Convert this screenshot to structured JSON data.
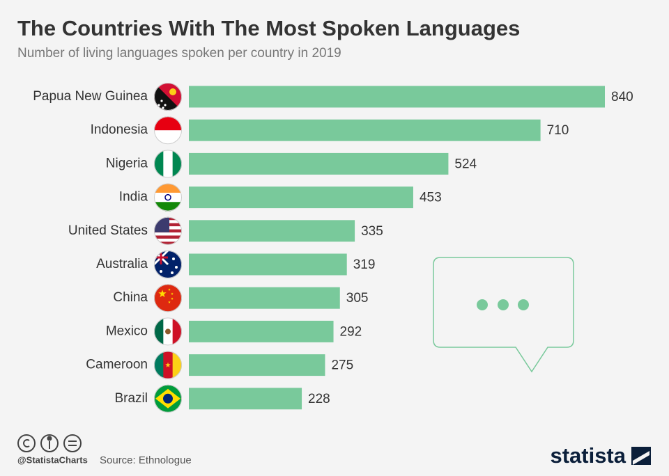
{
  "chart_data": {
    "type": "hbar",
    "title": "The Countries With The Most Spoken Languages",
    "subtitle": "Number of living languages spoken per country in 2019",
    "categories": [
      "Papua New Guinea",
      "Indonesia",
      "Nigeria",
      "India",
      "United States",
      "Australia",
      "China",
      "Mexico",
      "Cameroon",
      "Brazil"
    ],
    "values": [
      840,
      710,
      524,
      453,
      335,
      319,
      305,
      292,
      275,
      228
    ],
    "color": "#79c99b"
  },
  "footer": {
    "handle": "@StatistaCharts",
    "source": "Source: Ethnologue",
    "brand": "statista"
  }
}
